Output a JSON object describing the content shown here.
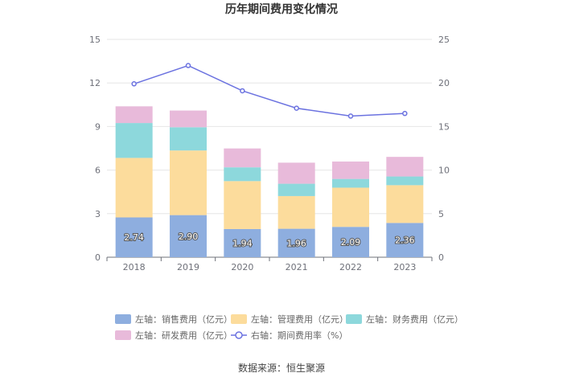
{
  "chart_data": {
    "type": "bar",
    "stacked": true,
    "title": "历年期间费用变化情况",
    "categories": [
      "2018",
      "2019",
      "2020",
      "2021",
      "2022",
      "2023"
    ],
    "left_axis": {
      "min": 0,
      "max": 15,
      "ticks": [
        "0",
        "3",
        "6",
        "9",
        "12",
        "15"
      ]
    },
    "right_axis": {
      "min": 0,
      "max": 25,
      "ticks": [
        "0",
        "5",
        "10",
        "15",
        "20",
        "25"
      ]
    },
    "series": [
      {
        "name": "左轴：销售费用（亿元）",
        "axis": "left",
        "kind": "bar",
        "color": "#8eaedf",
        "values": [
          2.74,
          2.9,
          1.94,
          1.96,
          2.09,
          2.36
        ],
        "labels": [
          "2.74",
          "2.90",
          "1.94",
          "1.96",
          "2.09",
          "2.36"
        ]
      },
      {
        "name": "左轴：管理费用（亿元）",
        "axis": "left",
        "kind": "bar",
        "color": "#fcdc9c",
        "values": [
          4.1,
          4.45,
          3.3,
          2.25,
          2.7,
          2.6
        ]
      },
      {
        "name": "左轴：财务费用（亿元）",
        "axis": "left",
        "kind": "bar",
        "color": "#8dd8dc",
        "values": [
          2.4,
          1.6,
          0.95,
          0.85,
          0.6,
          0.6
        ]
      },
      {
        "name": "左轴：研发费用（亿元）",
        "axis": "left",
        "kind": "bar",
        "color": "#e8bada",
        "values": [
          1.15,
          1.15,
          1.3,
          1.45,
          1.2,
          1.35
        ]
      },
      {
        "name": "右轴：期间费用率（%）",
        "axis": "right",
        "kind": "line",
        "color": "#6b72e0",
        "values": [
          19.9,
          22.0,
          19.1,
          17.1,
          16.2,
          16.5
        ]
      }
    ],
    "legend_position": "bottom",
    "grid": true,
    "source": "数据来源：恒生聚源"
  }
}
